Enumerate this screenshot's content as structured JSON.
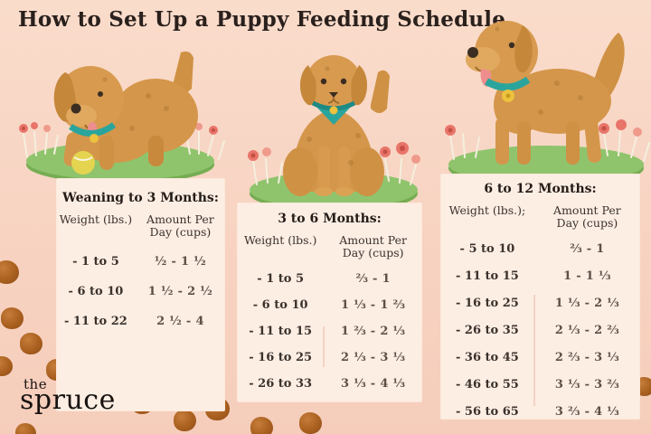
{
  "page": {
    "title": "How to Set Up a Puppy Feeding Schedule"
  },
  "brand": {
    "line1": "the",
    "line2": "spruce"
  },
  "tables": [
    {
      "title": "Weaning to 3 Months:",
      "weight_header": "Weight (lbs.)",
      "amount_header": "Amount Per Day (cups)",
      "rows": [
        {
          "weight": "- 1 to 5",
          "amount": "½ - 1 ½"
        },
        {
          "weight": "- 6 to 10",
          "amount": "1 ½ - 2 ½"
        },
        {
          "weight": "- 11 to 22",
          "amount": "2 ½ - 4"
        }
      ]
    },
    {
      "title": "3 to 6 Months:",
      "weight_header": "Weight (lbs.)",
      "amount_header": "Amount Per Day (cups)",
      "rows": [
        {
          "weight": "- 1 to 5",
          "amount": "⅔ - 1"
        },
        {
          "weight": "- 6 to 10",
          "amount": "1 ⅓ - 1 ⅔"
        },
        {
          "weight": "- 11 to 15",
          "amount": "1 ⅔ - 2 ⅓"
        },
        {
          "weight": "- 16 to 25",
          "amount": "2 ⅓ - 3 ⅓"
        },
        {
          "weight": "- 26 to 33",
          "amount": "3 ⅓ - 4 ⅓"
        }
      ]
    },
    {
      "title": "6 to 12 Months:",
      "weight_header": "Weight (lbs.);",
      "amount_header": "Amount Per Day (cups)",
      "rows": [
        {
          "weight": "- 5 to 10",
          "amount": "⅔ - 1"
        },
        {
          "weight": "- 11 to 15",
          "amount": "1 - 1 ⅓"
        },
        {
          "weight": "- 16 to 25",
          "amount": "1 ⅓ - 2 ⅓"
        },
        {
          "weight": "- 26 to 35",
          "amount": "2 ⅓ - 2 ⅔"
        },
        {
          "weight": "- 36 to 45",
          "amount": "2 ⅔ - 3 ⅓"
        },
        {
          "weight": "- 46 to 55",
          "amount": "3 ⅓ - 3 ⅔"
        },
        {
          "weight": "- 56 to 65",
          "amount": "3 ⅔ - 4 ⅓"
        }
      ]
    }
  ],
  "illustrations": [
    "golden-puppy-play-bow-with-tennis-ball",
    "golden-puppy-sitting-with-teal-bandana",
    "golden-puppy-standing-tongue-out"
  ],
  "colors": {
    "background": "#f8d5c4",
    "panel": "#fdeee4",
    "dog_gold": "#d4964a",
    "collar_teal": "#2aa59d",
    "grass_green": "#8fc46d",
    "flower_red": "#e8756a",
    "kibble_brown": "#a9601f",
    "text_dark": "#2a201c"
  }
}
